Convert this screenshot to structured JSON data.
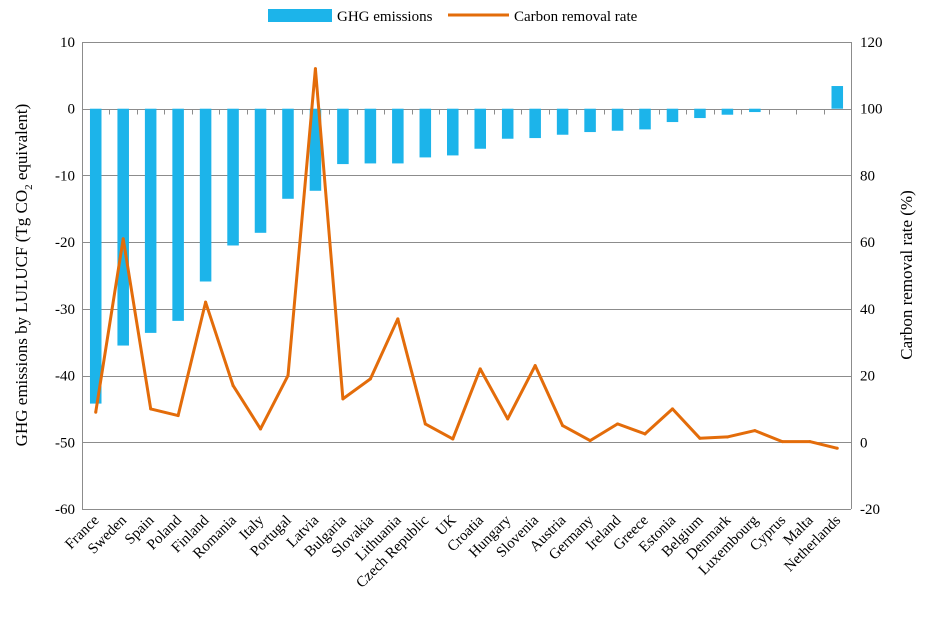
{
  "chart_data": {
    "type": "bar+line",
    "categories": [
      "France",
      "Sweden",
      "Spain",
      "Poland",
      "Finland",
      "Romania",
      "Italy",
      "Portugal",
      "Latvia",
      "Bulgaria",
      "Slovakia",
      "Lithuania",
      "Czech Republic",
      "UK",
      "Croatia",
      "Hungary",
      "Slovenia",
      "Austria",
      "Germany",
      "Ireland",
      "Greece",
      "Estonia",
      "Belgium",
      "Denmark",
      "Luxembourg",
      "Cyprus",
      "Malta",
      "Netherlands"
    ],
    "series": [
      {
        "name": "GHG emissions",
        "type": "bar",
        "axis": "left",
        "color": "#1cb4ea",
        "values": [
          -44.2,
          -35.5,
          -33.6,
          -31.8,
          -25.9,
          -20.5,
          -18.6,
          -13.5,
          -12.3,
          -8.3,
          -8.2,
          -8.2,
          -7.3,
          -7.0,
          -6.0,
          -4.5,
          -4.4,
          -3.9,
          -3.5,
          -3.3,
          -3.1,
          -2.0,
          -1.4,
          -0.9,
          -0.5,
          0.0,
          0.0,
          3.4
        ]
      },
      {
        "name": "Carbon removal rate",
        "type": "line",
        "axis": "right",
        "color": "#e36c0a",
        "values": [
          9,
          61,
          10,
          8,
          42,
          17,
          4,
          20,
          112,
          13,
          19,
          37,
          5.5,
          1,
          22,
          7,
          23,
          5,
          0.5,
          5.5,
          2.5,
          10,
          1.2,
          1.6,
          3.5,
          0.2,
          0.2,
          -1.8
        ]
      }
    ],
    "left_axis": {
      "label": "GHG emissions by LULUCF (Tg CO",
      "label_sub": "2",
      "label_tail": " equivalent)",
      "range": [
        -60,
        10
      ],
      "ticks": [
        "10",
        "0",
        "-10",
        "-20",
        "-30",
        "-40",
        "-50",
        "-60"
      ]
    },
    "right_axis": {
      "label": "Carbon removal rate (%)",
      "range": [
        -20,
        120
      ],
      "ticks": [
        "120",
        "100",
        "80",
        "60",
        "40",
        "20",
        "0",
        "-20"
      ]
    },
    "legend": {
      "position": "top",
      "items": [
        "GHG emissions",
        "Carbon removal rate"
      ]
    },
    "grid": true
  }
}
